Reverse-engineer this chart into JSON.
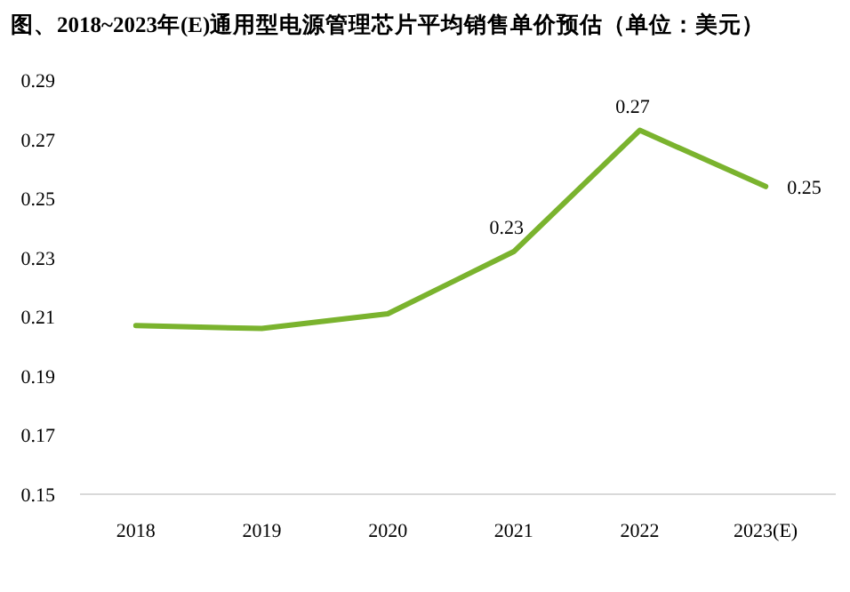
{
  "chart_data": {
    "type": "line",
    "title": "图、2018~2023年(E)通用型电源管理芯片平均销售单价预估（单位：美元）",
    "categories": [
      "2018",
      "2019",
      "2020",
      "2021",
      "2022",
      "2023(E)"
    ],
    "series": [
      {
        "color": "#7ab32e",
        "values": [
          0.207,
          0.206,
          0.211,
          0.232,
          0.273,
          0.254
        ],
        "value_labels": [
          null,
          null,
          null,
          "0.23",
          "0.27",
          "0.25"
        ]
      }
    ],
    "ylim": [
      0.15,
      0.29
    ],
    "yticks": [
      0.15,
      0.17,
      0.19,
      0.21,
      0.23,
      0.25,
      0.27,
      0.29
    ],
    "grid": false,
    "marker": "none",
    "line_style": "solid"
  }
}
